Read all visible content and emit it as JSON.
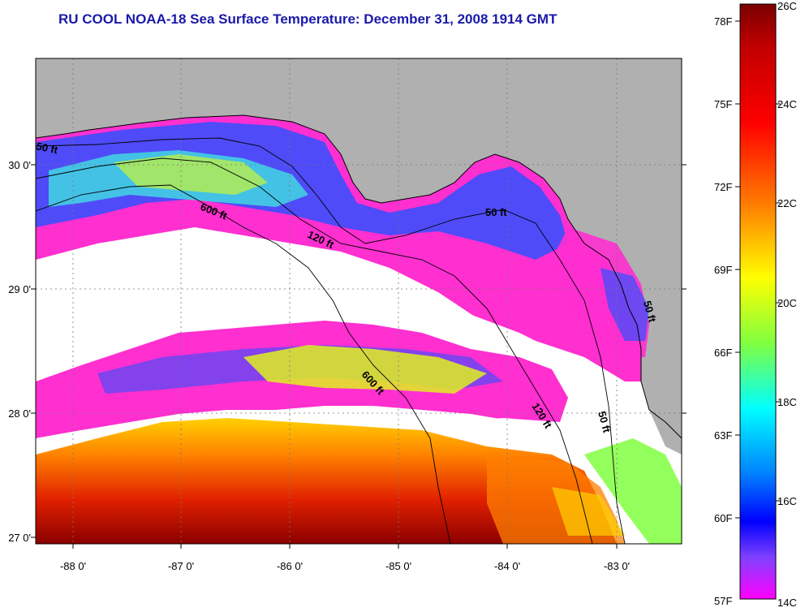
{
  "title": "RU COOL  NOAA-18  Sea Surface Temperature:  December 31, 2008 1914 GMT",
  "map": {
    "lat_labels": [
      "30 0'",
      "29 0'",
      "28 0'",
      "27 0'"
    ],
    "lon_labels": [
      "-88 0'",
      "-87 0'",
      "-86 0'",
      "-85 0'",
      "-84 0'",
      "-83 0'"
    ],
    "isobaths": [
      "50 ft",
      "600 ft",
      "120 ft",
      "50 ft",
      "600 ft",
      "120 ft",
      "50 ft",
      "50 ft"
    ],
    "land_color": "#b0b0b0",
    "cloud_color": "#ffffff"
  },
  "colorbar": {
    "f_labels": [
      "78F",
      "75F",
      "72F",
      "69F",
      "66F",
      "63F",
      "60F",
      "57F"
    ],
    "c_labels": [
      "26C",
      "24C",
      "22C",
      "20C",
      "18C",
      "16C",
      "14C"
    ],
    "colors": [
      "#8b0000",
      "#ff0000",
      "#ff8000",
      "#ffff00",
      "#00ffff",
      "#0000ff",
      "#ff00ff"
    ]
  }
}
